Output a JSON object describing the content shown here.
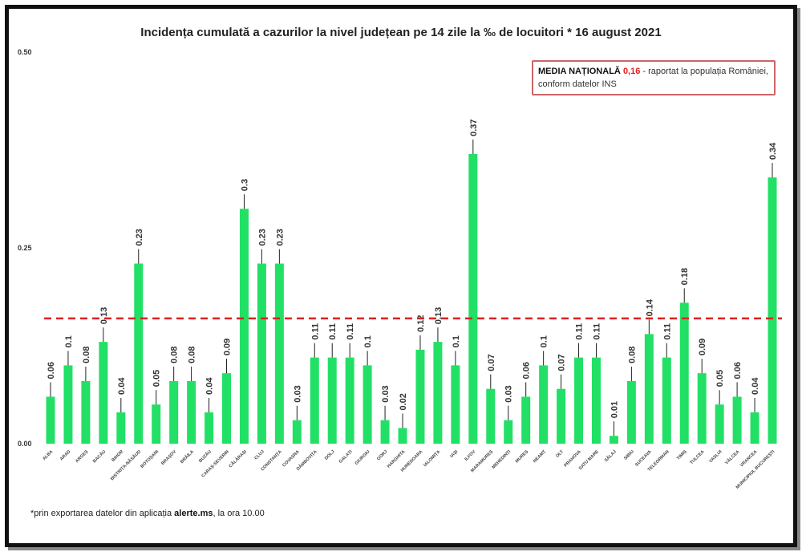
{
  "chart_data": {
    "type": "bar",
    "title": "Incidența cumulată a cazurilor la nivel județean pe 14 zile la ‰ de locuitori *  16 august 2021",
    "xlabel": "",
    "ylabel": "",
    "ylim": [
      0,
      0.5
    ],
    "yticks": [
      "0.00",
      "0.25",
      "0.50"
    ],
    "grid": false,
    "bar_color": "#22e066",
    "reference_line": {
      "value": 0.16,
      "color": "#dd2222",
      "style": "dashed"
    },
    "categories": [
      "ALBA",
      "ARAD",
      "ARGEȘ",
      "BACĂU",
      "BIHOR",
      "BISTRIȚA-NĂSĂUD",
      "BOTOȘANI",
      "BRAȘOV",
      "BRĂILA",
      "BUZĂU",
      "CARAȘ-SEVERIN",
      "CĂLĂRAȘI",
      "CLUJ",
      "CONSTANȚA",
      "COVASNA",
      "DÂMBOVIȚA",
      "DOLJ",
      "GALAȚI",
      "GIURGIU",
      "GORJ",
      "HARGHITA",
      "HUNEDOARA",
      "IALOMIȚA",
      "IAȘI",
      "ILFOV",
      "MARAMUREȘ",
      "MEHEDINȚI",
      "MUREȘ",
      "NEAMȚ",
      "OLT",
      "PRAHOVA",
      "SATU MARE",
      "SĂLAJ",
      "SIBIU",
      "SUCEAVA",
      "TELEORMAN",
      "TIMIȘ",
      "TULCEA",
      "VASLUI",
      "VÂLCEA",
      "VRANCEA",
      "MUNICIPIUL BUCUREȘTI"
    ],
    "values": [
      0.06,
      0.1,
      0.08,
      0.13,
      0.04,
      0.23,
      0.05,
      0.08,
      0.08,
      0.04,
      0.09,
      0.3,
      0.23,
      0.23,
      0.03,
      0.11,
      0.11,
      0.11,
      0.1,
      0.03,
      0.02,
      0.12,
      0.13,
      0.1,
      0.37,
      0.07,
      0.03,
      0.06,
      0.1,
      0.07,
      0.11,
      0.11,
      0.01,
      0.08,
      0.14,
      0.11,
      0.18,
      0.09,
      0.05,
      0.06,
      0.04,
      0.34
    ]
  },
  "legend_box": {
    "label": "MEDIA NAȚIONALĂ",
    "value": "0,16",
    "text": " - raportat la populația României, conform datelor INS"
  },
  "footer": {
    "prefix": "*prin exportarea datelor din aplicația ",
    "app": "alerte.ms",
    "suffix": ", la ora 10.00"
  }
}
